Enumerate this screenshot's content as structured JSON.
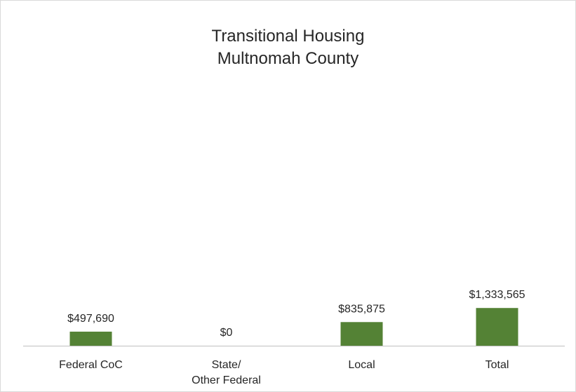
{
  "chart_data": {
    "type": "bar",
    "title": "Transitional Housing\nMultnomah County",
    "categories": [
      "Federal CoC",
      "State/\nOther Federal",
      "Local",
      "Total"
    ],
    "values": [
      497690,
      0,
      835875,
      1333565
    ],
    "value_labels": [
      "$497,690",
      "$0",
      "$835,875",
      "$1,333,565"
    ],
    "color": "#548235",
    "ylim": [
      0,
      9000000
    ]
  }
}
